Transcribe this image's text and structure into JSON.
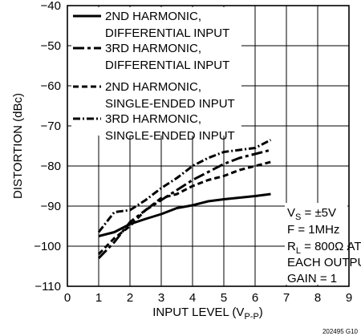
{
  "chart_data": {
    "type": "line",
    "xlabel": "INPUT LEVEL (V",
    "xlabel_sub": "P-P",
    "xlabel_close": ")",
    "ylabel": "DISTORTION (dBc)",
    "xlim": [
      0,
      9
    ],
    "ylim": [
      -110,
      -40
    ],
    "xticks": [
      "0",
      "1",
      "2",
      "3",
      "4",
      "5",
      "6",
      "7",
      "8",
      "9"
    ],
    "yticks": [
      "−40",
      "−50",
      "−60",
      "−70",
      "−80",
      "−90",
      "−100",
      "−110"
    ],
    "grid": true,
    "legend_position": "top-left",
    "series": [
      {
        "name_lines": [
          "2ND HARMONIC,",
          "DIFFERENTIAL INPUT"
        ],
        "dash": "solid",
        "x": [
          1.0,
          1.5,
          2.0,
          2.5,
          3.0,
          3.5,
          4.0,
          4.5,
          5.0,
          5.5,
          6.0,
          6.5
        ],
        "y": [
          -97.5,
          -96.5,
          -94.5,
          -93.2,
          -92.0,
          -90.5,
          -89.8,
          -88.8,
          -88.3,
          -87.9,
          -87.5,
          -87.0
        ]
      },
      {
        "name_lines": [
          "3RD HARMONIC,",
          "DIFFERENTIAL INPUT"
        ],
        "dash": "long-short",
        "x": [
          1.0,
          1.5,
          2.0,
          2.5,
          3.0,
          3.5,
          4.0,
          4.5,
          5.0,
          5.5,
          6.0,
          6.5
        ],
        "y": [
          -103.0,
          -99.0,
          -94.0,
          -91.0,
          -88.5,
          -86.0,
          -83.5,
          -81.5,
          -79.5,
          -78.0,
          -77.0,
          -76.0
        ]
      },
      {
        "name_lines": [
          "2ND HARMONIC,",
          "SINGLE-ENDED INPUT"
        ],
        "dash": "dashed",
        "x": [
          1.0,
          1.5,
          2.0,
          2.5,
          3.0,
          3.5,
          4.0,
          4.5,
          5.0,
          5.5,
          6.0,
          6.5
        ],
        "y": [
          -102.0,
          -98.0,
          -95.0,
          -91.0,
          -88.0,
          -87.0,
          -85.0,
          -83.5,
          -82.5,
          -81.0,
          -80.0,
          -79.0
        ]
      },
      {
        "name_lines": [
          "3RD HARMONIC,",
          "SINGLE-ENDED INPUT"
        ],
        "dash": "dash-dot",
        "x": [
          1.0,
          1.5,
          2.0,
          2.5,
          3.0,
          3.5,
          4.0,
          4.5,
          5.0,
          5.5,
          6.0,
          6.5
        ],
        "y": [
          -96.5,
          -91.5,
          -91.0,
          -88.5,
          -85.5,
          -83.0,
          -80.0,
          -78.0,
          -76.5,
          -76.0,
          -75.5,
          -73.5
        ]
      }
    ],
    "conditions": {
      "vs_main": "V",
      "vs_sub": "S",
      "vs_rest": " = ±5V",
      "freq": "F = 1MHz",
      "rl_main": "R",
      "rl_sub": "L",
      "rl_rest": " = 800Ω AT",
      "each_output": "EACH OUTPUT",
      "gain": "GAIN = 1"
    },
    "figure_id": "202495 G10"
  }
}
